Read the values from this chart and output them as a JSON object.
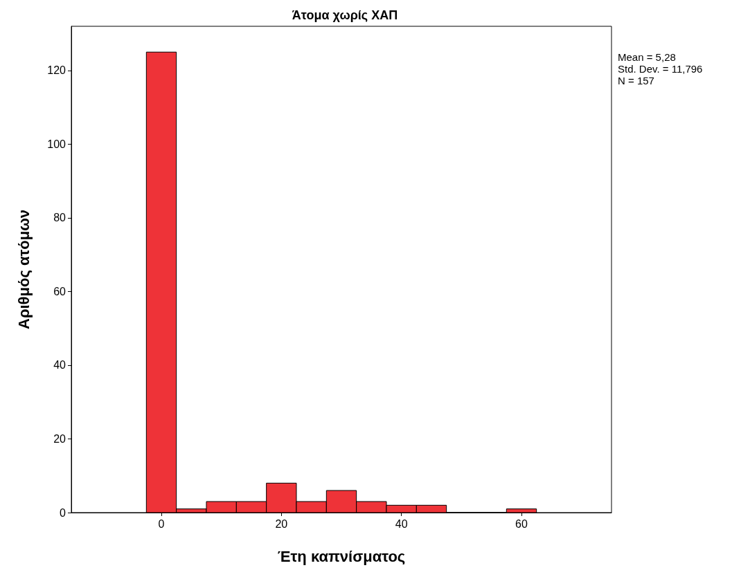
{
  "chart_data": {
    "type": "histogram",
    "title": "Άτομα χωρίς ΧΑΠ",
    "xlabel": "Έτη καπνίσματος",
    "ylabel": "Αριθμός ατόμων",
    "bins": [
      -2.5,
      2.5,
      7.5,
      12.5,
      17.5,
      22.5,
      27.5,
      32.5,
      37.5,
      42.5,
      47.5,
      52.5,
      57.5,
      62.5
    ],
    "values": [
      125,
      1,
      3,
      3,
      8,
      3,
      6,
      3,
      2,
      2,
      0,
      0,
      1
    ],
    "color": "#ee3338",
    "xlim": [
      -15,
      75
    ],
    "xticks": [
      0,
      20,
      40,
      60
    ],
    "ylim": [
      0,
      132
    ],
    "yticks": [
      0,
      20,
      40,
      60,
      80,
      100,
      120
    ],
    "grid": false,
    "annotations": [
      "Mean = 5,28",
      "Std. Dev. = 11,796",
      "N = 157"
    ]
  }
}
